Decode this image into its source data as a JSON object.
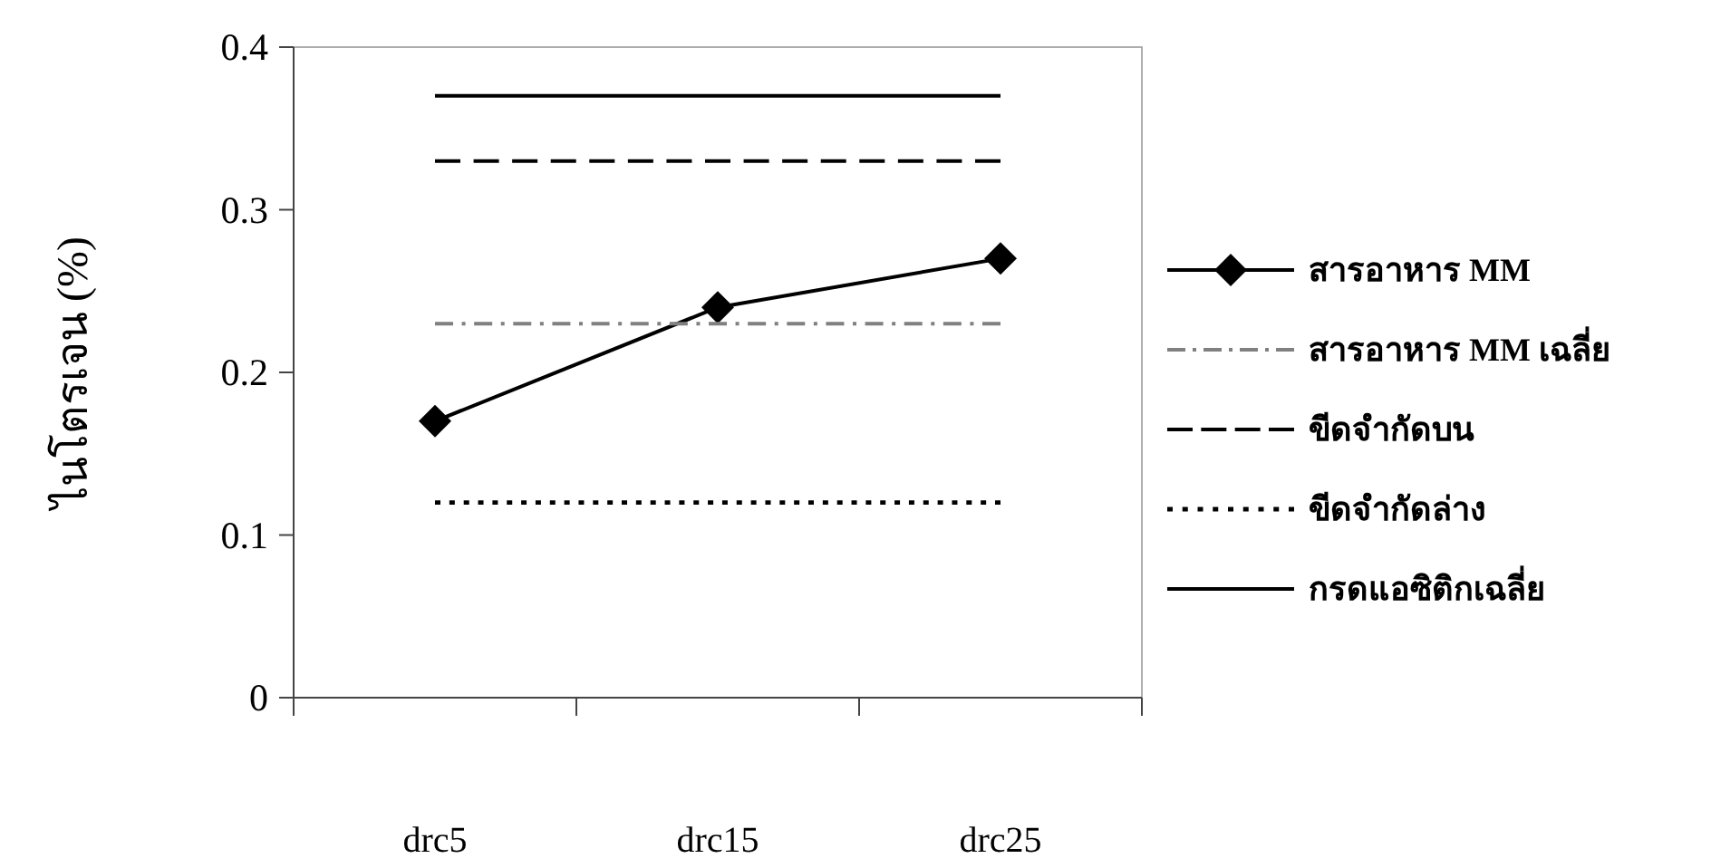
{
  "chart_data": {
    "type": "line",
    "ylabel": "ไนโตรเจน (%)",
    "categories": [
      "drc5",
      "drc15",
      "drc25"
    ],
    "ylim": [
      0,
      0.4
    ],
    "yticks": [
      0,
      0.1,
      0.2,
      0.3,
      0.4
    ],
    "grid": false,
    "legend": "right",
    "series": [
      {
        "name": "สารอาหาร MM",
        "color": "#000000",
        "values": [
          0.17,
          0.24,
          0.27
        ],
        "marker": "diamond",
        "line_style": "solid"
      },
      {
        "name": "สารอาหาร MM เฉลี่ย",
        "color": "#808080",
        "values": [
          0.23,
          0.23,
          0.23
        ],
        "marker": "none",
        "line_style": "dashdot"
      },
      {
        "name": "ขีดจำกัดบน",
        "color": "#000000",
        "values": [
          0.33,
          0.33,
          0.33
        ],
        "marker": "none",
        "line_style": "dashed"
      },
      {
        "name": "ขีดจำกัดล่าง",
        "color": "#000000",
        "values": [
          0.12,
          0.12,
          0.12
        ],
        "marker": "none",
        "line_style": "dotted"
      },
      {
        "name": "กรดแอซิติกเฉลี่ย",
        "color": "#000000",
        "values": [
          0.37,
          0.37,
          0.37
        ],
        "marker": "none",
        "line_style": "solid"
      }
    ]
  }
}
